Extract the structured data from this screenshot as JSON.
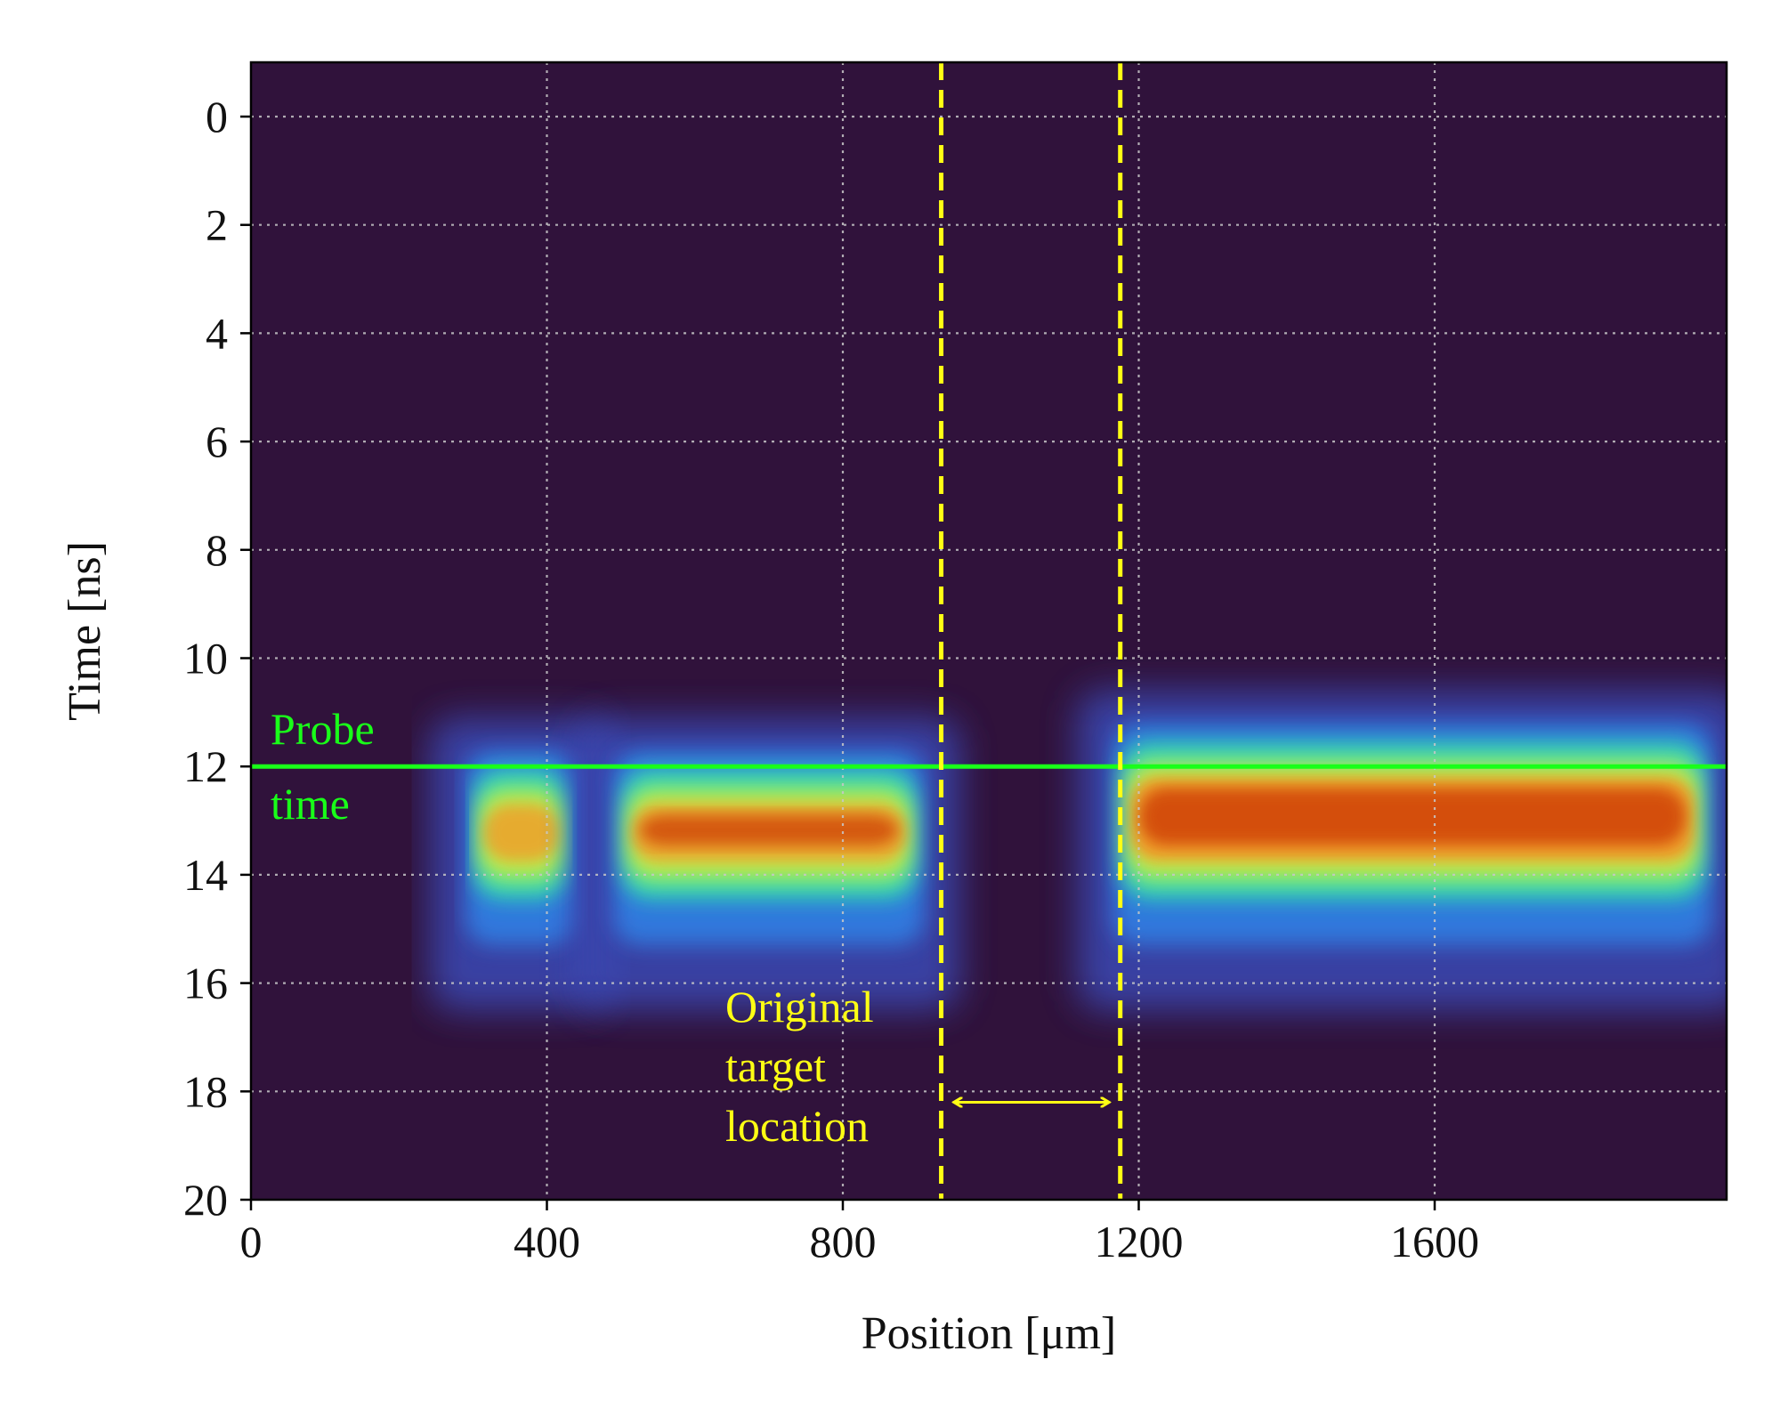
{
  "chart_data": {
    "type": "heatmap",
    "title": "",
    "xlabel": "Position [μm]",
    "ylabel": "Time [ns]",
    "xlim": [
      0,
      2000
    ],
    "ylim": [
      -1,
      20
    ],
    "y_inverted": true,
    "xticks": [
      0,
      400,
      800,
      1200,
      1600
    ],
    "yticks": [
      0,
      2,
      4,
      6,
      8,
      10,
      12,
      14,
      16,
      18,
      20
    ],
    "grid": true,
    "colormap": "turbo",
    "background_color": "#30123b",
    "intensity_regions": [
      {
        "x_start": 290,
        "x_end": 440,
        "t_start": 11.8,
        "t_end": 16.2,
        "peak": 0.72
      },
      {
        "x_start": 490,
        "x_end": 910,
        "t_start": 11.8,
        "t_end": 16.2,
        "peak": 0.8
      },
      {
        "x_start": 1165,
        "x_end": 1975,
        "t_start": 11.3,
        "t_end": 16.2,
        "peak": 0.93
      }
    ],
    "annotations": {
      "probe_time": {
        "text_line1": "Probe",
        "text_line2": "time",
        "t": 12,
        "color": "#19ff19"
      },
      "target_lines": {
        "x": [
          933,
          1175
        ],
        "color": "#ffff14"
      },
      "target_label": {
        "line1": "Original",
        "line2": "target",
        "line3": "location",
        "color": "#ffff14"
      },
      "arrow": {
        "x_start": 950,
        "x_end": 1160,
        "t": 18.2
      }
    }
  }
}
